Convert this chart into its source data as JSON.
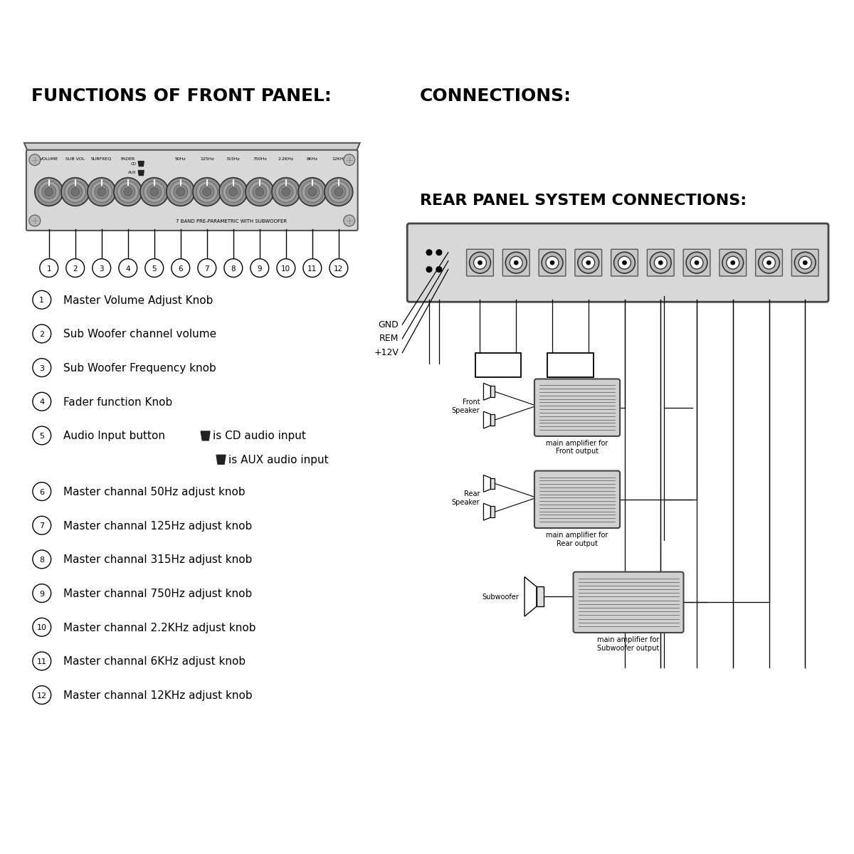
{
  "bg_color": "#ffffff",
  "title_left": "FUNCTIONS OF FRONT PANEL:",
  "title_right": "CONNECTIONS:",
  "section_title_right": "REAR PANEL SYSTEM CONNECTIONS:",
  "items": [
    [
      1,
      "Master Volume Adjust Knob"
    ],
    [
      2,
      "Sub Woofer channel volume"
    ],
    [
      3,
      "Sub Woofer Frequency knob"
    ],
    [
      4,
      "Fader function Knob"
    ],
    [
      5,
      "Audio Input button"
    ],
    [
      6,
      "Master channal 50Hz adjust knob"
    ],
    [
      7,
      "Master channal 125Hz adjust knob"
    ],
    [
      8,
      "Master channal 315Hz adjust knob"
    ],
    [
      9,
      "Master channal 750Hz adjust knob"
    ],
    [
      10,
      "Master channal 2.2KHz adjust knob"
    ],
    [
      11,
      "Master channal 6KHz adjust knob"
    ],
    [
      12,
      "Master channal 12KHz adjust knob"
    ]
  ],
  "cd_sub1": "is CD audio input",
  "aux_sub2": "is AUX audio input",
  "knob_top_labels": [
    "VOLUME",
    "SUB VOL",
    "SUBFREQ",
    "FADER",
    "",
    "50Hz",
    "125Hz",
    "315Hz",
    "750Hz",
    "2.2KHz",
    "6KHz",
    "12KHz"
  ],
  "panel_text": "7 BAND PRE-PARAMETRIC WITH SUBWOOFER",
  "gnd_rem_v12": [
    "GND",
    "REM",
    "+12V"
  ],
  "cd_aux_boxes": [
    "CD",
    "AUX"
  ],
  "speaker_labels": [
    "Front\nSpeaker",
    "Rear\nSpeaker",
    "Subwoofer"
  ],
  "amp_labels": [
    "main amplifier for\nFront output",
    "main amplifier for\nRear output",
    "main amplifier for\nSubwoofer output"
  ]
}
